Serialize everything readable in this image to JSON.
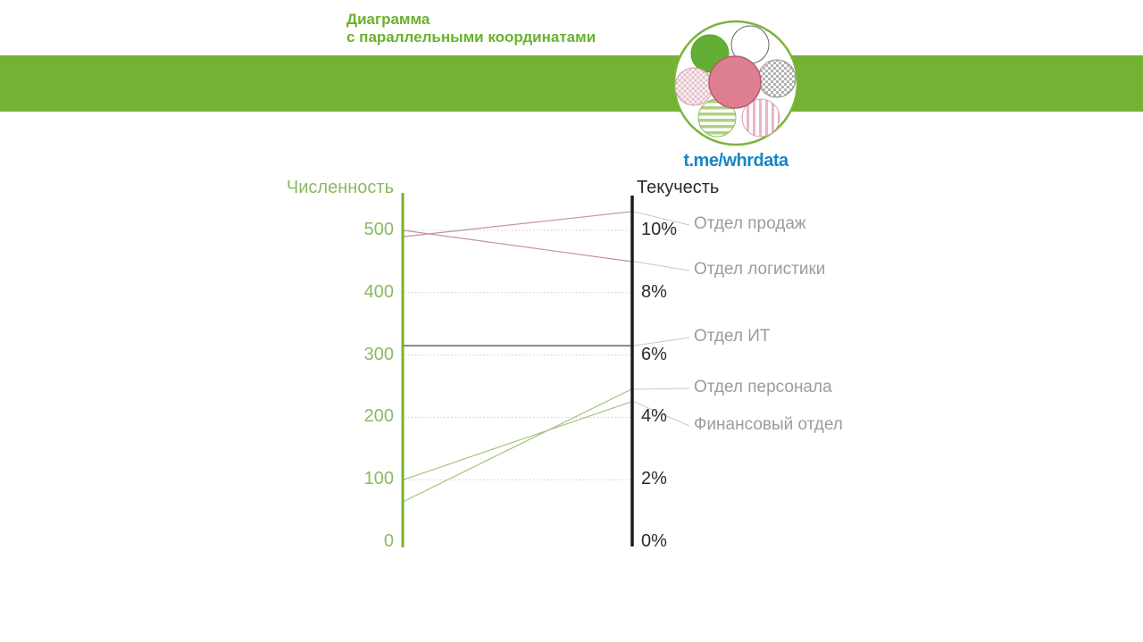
{
  "header": {
    "title_line1": "Диаграмма",
    "title_line2": "с параллельными координатами",
    "telegram": "t.me/whrdata"
  },
  "logo": {
    "name": "flower-logo",
    "center": "solid-pink-circle",
    "petals": [
      "solid-green-circle",
      "white-circle",
      "gray-checker-circle",
      "pink-striped-circle",
      "green-striped-circle",
      "pink-mesh-circle"
    ]
  },
  "colors": {
    "banner": "#74b233",
    "title": "#68b22e",
    "telegram": "#1487c8",
    "left_axis": "#74b232",
    "left_text": "#8aba60",
    "right_axis": "#1c1c1c",
    "right_text": "#2b2b2b",
    "dept_labels": "#9c9c9c",
    "leader": "#c6c6c6",
    "grid": "#c9c9c9"
  },
  "chart_data": {
    "type": "parallel-coordinates",
    "axes": {
      "left": {
        "title": "Численность",
        "range": [
          0,
          500
        ],
        "ticks": [
          500,
          400,
          300,
          200,
          100,
          0
        ]
      },
      "right": {
        "title": "Текучесть",
        "range_pct": [
          0,
          10
        ],
        "ticks": [
          "10%",
          "8%",
          "6%",
          "4%",
          "2%",
          "0%"
        ]
      }
    },
    "departments": [
      {
        "name": "Отдел продаж",
        "headcount": 490,
        "turnover_pct": 10.6,
        "color": "#c0929a"
      },
      {
        "name": "Отдел логистики",
        "headcount": 500,
        "turnover_pct": 9.0,
        "color": "#c0929a"
      },
      {
        "name": "Отдел ИТ",
        "headcount": 315,
        "turnover_pct": 6.3,
        "color": "#474747"
      },
      {
        "name": "Отдел персонала",
        "headcount": 65,
        "turnover_pct": 4.9,
        "color": "#a6c183"
      },
      {
        "name": "Финансовый отдел",
        "headcount": 100,
        "turnover_pct": 4.5,
        "color": "#a6c183"
      }
    ],
    "gridlines": true,
    "legend_position": "right-labels"
  }
}
